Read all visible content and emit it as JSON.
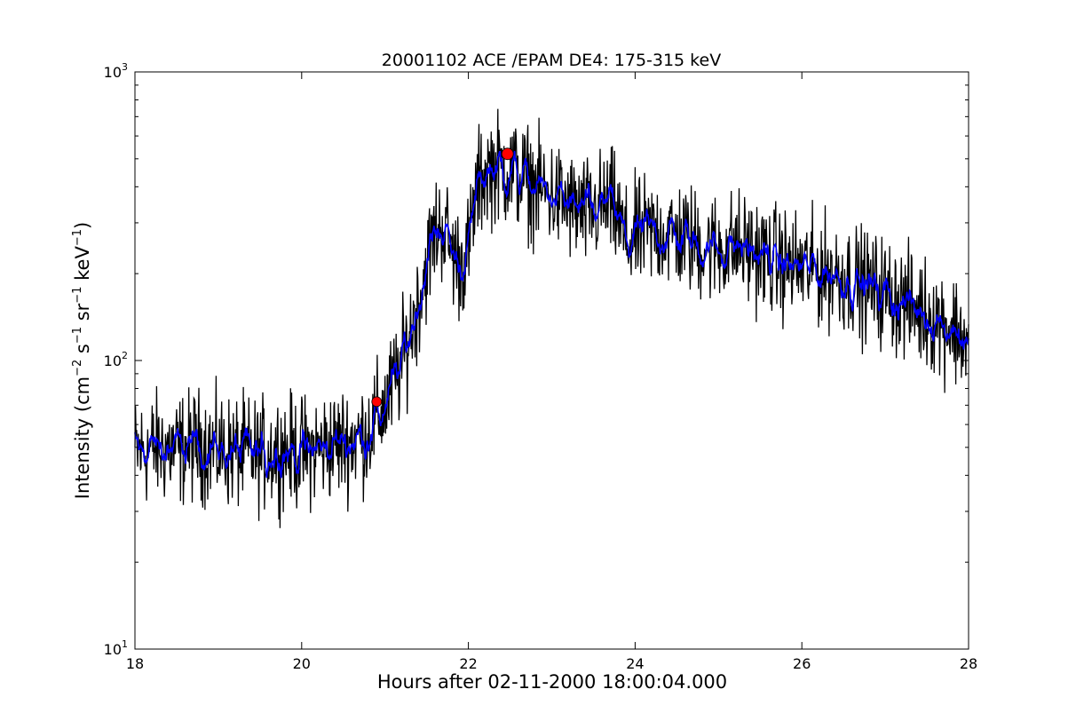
{
  "chart_data": {
    "type": "line",
    "title": "20001102 ACE /EPAM DE4: 175-315 keV",
    "xlabel": "Hours after 02-11-2000 18:00:04.000",
    "ylabel": {
      "prefix": "Intensity (cm",
      "exp1": "−2",
      "mid1": " s",
      "exp2": "−1",
      "mid2": " sr",
      "exp3": "−1",
      "mid3": " keV",
      "exp4": "−1",
      "suffix": ")"
    },
    "xlim": [
      18,
      28
    ],
    "ylim": [
      10,
      1000
    ],
    "yscale": "log",
    "grid": false,
    "x_ticks": [
      18,
      20,
      22,
      24,
      26,
      28
    ],
    "y_ticks": [
      {
        "value": 10,
        "base": "10",
        "exp": "1"
      },
      {
        "value": 100,
        "base": "10",
        "exp": "2"
      },
      {
        "value": 1000,
        "base": "10",
        "exp": "3"
      }
    ],
    "colors": {
      "raw": "#000000",
      "smoothed": "#0000ff",
      "markers": "#ff0000"
    },
    "series": [
      {
        "kind": "raw",
        "x": [
          18.0,
          18.25,
          18.5,
          18.75,
          19.0,
          19.25,
          19.5,
          19.75,
          20.0,
          20.25,
          20.5,
          20.75,
          20.9,
          21.0,
          21.1,
          21.2,
          21.3,
          21.4,
          21.5,
          21.6,
          21.7,
          21.8,
          21.9,
          22.0,
          22.1,
          22.2,
          22.3,
          22.4,
          22.5,
          22.6,
          22.8,
          23.0,
          23.2,
          23.4,
          23.6,
          23.7,
          23.8,
          23.9,
          24.0,
          24.2,
          24.4,
          24.6,
          24.8,
          25.0,
          25.2,
          25.4,
          25.6,
          25.8,
          26.0,
          26.2,
          26.4,
          26.6,
          26.8,
          27.0,
          27.2,
          27.4,
          27.6,
          27.8,
          27.95,
          28.0
        ],
        "y": [
          48,
          50,
          49,
          51,
          49,
          48,
          47,
          49,
          48,
          50,
          52,
          55,
          62,
          70,
          82,
          98,
          125,
          160,
          215,
          280,
          295,
          240,
          215,
          240,
          390,
          450,
          470,
          460,
          455,
          440,
          400,
          375,
          345,
          320,
          340,
          350,
          310,
          250,
          270,
          280,
          275,
          265,
          250,
          245,
          250,
          240,
          225,
          215,
          210,
          205,
          200,
          190,
          180,
          172,
          160,
          150,
          140,
          130,
          120,
          100
        ]
      },
      {
        "kind": "smoothed",
        "x": [
          18.0,
          18.25,
          18.5,
          18.75,
          19.0,
          19.25,
          19.5,
          19.75,
          20.0,
          20.25,
          20.5,
          20.75,
          20.9,
          21.0,
          21.1,
          21.2,
          21.3,
          21.4,
          21.5,
          21.6,
          21.7,
          21.8,
          21.9,
          22.0,
          22.1,
          22.2,
          22.3,
          22.4,
          22.5,
          22.6,
          22.8,
          23.0,
          23.2,
          23.4,
          23.6,
          23.7,
          23.8,
          23.9,
          24.0,
          24.2,
          24.4,
          24.6,
          24.8,
          25.0,
          25.2,
          25.4,
          25.6,
          25.8,
          26.0,
          26.2,
          26.4,
          26.6,
          26.8,
          27.0,
          27.2,
          27.4,
          27.6,
          27.8,
          27.95,
          28.0
        ],
        "y": [
          48,
          50,
          49,
          51,
          49,
          48,
          47,
          49,
          48,
          50,
          52,
          55,
          62,
          70,
          82,
          98,
          125,
          160,
          215,
          280,
          295,
          240,
          215,
          240,
          390,
          450,
          470,
          460,
          455,
          440,
          400,
          375,
          345,
          320,
          340,
          350,
          310,
          250,
          270,
          280,
          275,
          265,
          250,
          245,
          250,
          240,
          225,
          215,
          210,
          205,
          200,
          190,
          180,
          172,
          160,
          150,
          140,
          130,
          120,
          100
        ]
      }
    ],
    "markers": [
      {
        "x": 20.9,
        "y": 72
      },
      {
        "x": 22.47,
        "y": 520
      }
    ]
  }
}
